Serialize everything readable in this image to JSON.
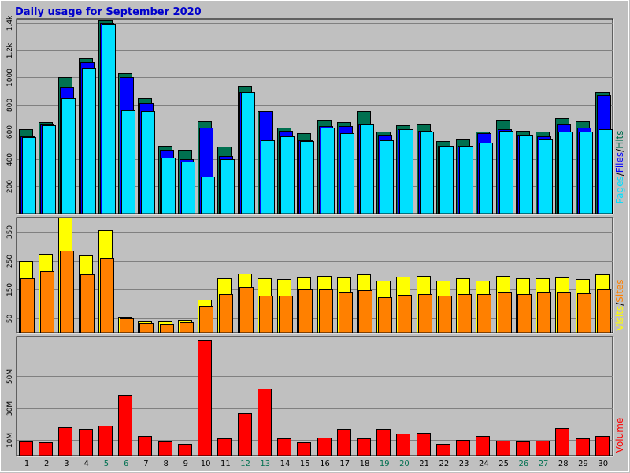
{
  "title": "Daily usage for September 2020",
  "colors": {
    "background": "#c0c0c0",
    "plot_bg": "#c0c0c0",
    "title": "#0000cc",
    "hits": "#007050",
    "files": "#0000ff",
    "pages": "#00e0ff",
    "visits": "#ffff00",
    "sites": "#ff8000",
    "volume": "#ff0000",
    "weekend_label": "#007050",
    "weekday_label": "#000000"
  },
  "chart_data": [
    {
      "type": "bar",
      "panel": "top",
      "y_axis_title_parts": [
        {
          "text": "Pages",
          "color_key": "pages"
        },
        {
          "text": "/",
          "color_key": "weekday_label"
        },
        {
          "text": "Files",
          "color_key": "files"
        },
        {
          "text": "/",
          "color_key": "weekday_label"
        },
        {
          "text": "Hits",
          "color_key": "hits"
        }
      ],
      "ylim": [
        0,
        1430
      ],
      "yticks": [
        200,
        400,
        600,
        800,
        1000,
        1200,
        1400
      ],
      "ytick_labels": [
        "200",
        "400",
        "600",
        "800",
        "1000",
        "1.2k",
        "1.4k"
      ],
      "series": [
        {
          "name": "Hits",
          "color_key": "hits",
          "values": [
            620,
            670,
            1000,
            1140,
            1420,
            1030,
            850,
            500,
            470,
            680,
            490,
            940,
            750,
            630,
            590,
            690,
            670,
            750,
            600,
            650,
            660,
            530,
            550,
            600,
            690,
            610,
            600,
            700,
            680,
            890
          ]
        },
        {
          "name": "Files",
          "color_key": "files",
          "values": [
            570,
            660,
            930,
            1110,
            1400,
            1000,
            810,
            470,
            400,
            630,
            420,
            890,
            750,
            610,
            540,
            640,
            640,
            660,
            580,
            620,
            610,
            500,
            500,
            590,
            620,
            580,
            570,
            660,
            630,
            870
          ]
        },
        {
          "name": "Pages",
          "color_key": "pages",
          "values": [
            560,
            650,
            850,
            1070,
            1390,
            760,
            750,
            410,
            380,
            270,
            400,
            890,
            540,
            570,
            530,
            630,
            590,
            660,
            540,
            620,
            600,
            500,
            500,
            520,
            610,
            580,
            550,
            600,
            600,
            620
          ]
        }
      ]
    },
    {
      "type": "bar",
      "panel": "middle",
      "y_axis_title_parts": [
        {
          "text": "Visits",
          "color_key": "visits"
        },
        {
          "text": "/",
          "color_key": "weekday_label"
        },
        {
          "text": "Sites",
          "color_key": "sites"
        }
      ],
      "ylim": [
        0,
        400
      ],
      "yticks": [
        50,
        150,
        250,
        350
      ],
      "ytick_labels": [
        "50",
        "150",
        "250",
        "350"
      ],
      "series": [
        {
          "name": "Visits",
          "color_key": "visits",
          "values": [
            250,
            275,
            400,
            268,
            355,
            55,
            42,
            42,
            45,
            115,
            190,
            205,
            190,
            185,
            192,
            198,
            192,
            202,
            182,
            195,
            198,
            182,
            188,
            182,
            198,
            188,
            188,
            192,
            185,
            202
          ]
        },
        {
          "name": "Sites",
          "color_key": "sites",
          "values": [
            190,
            215,
            285,
            202,
            260,
            50,
            32,
            30,
            35,
            92,
            135,
            158,
            128,
            128,
            150,
            150,
            140,
            148,
            122,
            132,
            135,
            130,
            135,
            135,
            140,
            135,
            140,
            140,
            138,
            152
          ]
        }
      ]
    },
    {
      "type": "bar",
      "panel": "bottom",
      "y_axis_title_parts": [
        {
          "text": "Volume",
          "color_key": "volume"
        }
      ],
      "ylim": [
        0,
        75
      ],
      "yticks": [
        10,
        30,
        50
      ],
      "ytick_labels": [
        "10M",
        "30M",
        "50M"
      ],
      "unit": "MB",
      "series": [
        {
          "name": "Volume",
          "color_key": "volume",
          "values": [
            9,
            8.5,
            18,
            17,
            19,
            38,
            12.5,
            9,
            7.5,
            73,
            11,
            27,
            42,
            11,
            8.5,
            11.5,
            17,
            11,
            17,
            14,
            14.5,
            7.5,
            10,
            12.5,
            9.5,
            9,
            9.5,
            17.5,
            11,
            12.5
          ]
        }
      ]
    }
  ],
  "x_axis": {
    "days": [
      "1",
      "2",
      "3",
      "4",
      "5",
      "6",
      "7",
      "8",
      "9",
      "10",
      "11",
      "12",
      "13",
      "14",
      "15",
      "16",
      "17",
      "18",
      "19",
      "20",
      "21",
      "22",
      "23",
      "24",
      "25",
      "26",
      "27",
      "28",
      "29",
      "30"
    ],
    "weekend": [
      false,
      false,
      false,
      false,
      true,
      true,
      false,
      false,
      false,
      false,
      false,
      true,
      true,
      false,
      false,
      false,
      false,
      false,
      true,
      true,
      false,
      false,
      false,
      false,
      false,
      true,
      true,
      false,
      false,
      false
    ]
  }
}
